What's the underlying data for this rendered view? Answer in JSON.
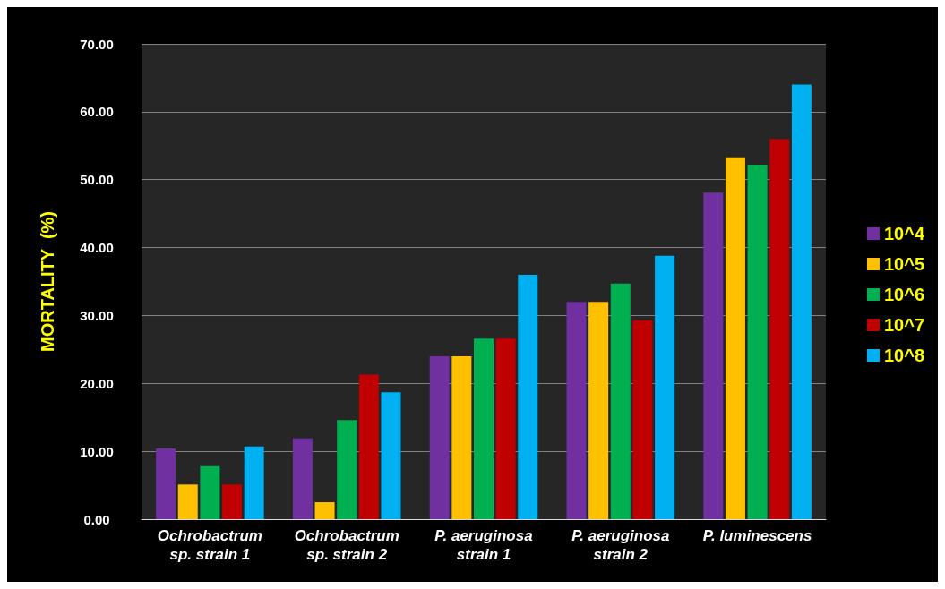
{
  "chart_data": {
    "type": "bar",
    "ylabel": "MORTALITY  (%)",
    "categories": [
      "Ochrobactrum\nsp. strain 1",
      "Ochrobactrum\nsp. strain 2",
      "P. aeruginosa\nstrain 1",
      "P. aeruginosa\nstrain 2",
      "P. luminescens"
    ],
    "series": [
      {
        "name": "10^4",
        "color": "#7030a0",
        "values": [
          10.4,
          11.9,
          24.0,
          32.0,
          48.1
        ]
      },
      {
        "name": "10^5",
        "color": "#ffc000",
        "values": [
          5.1,
          2.5,
          24.0,
          32.0,
          53.3
        ]
      },
      {
        "name": "10^6",
        "color": "#00b050",
        "values": [
          7.8,
          14.6,
          26.6,
          34.7,
          52.2
        ]
      },
      {
        "name": "10^7",
        "color": "#c00000",
        "values": [
          5.1,
          21.3,
          26.6,
          29.3,
          56.0
        ]
      },
      {
        "name": "10^8",
        "color": "#00b0f0",
        "values": [
          10.7,
          18.7,
          36.0,
          38.8,
          64.0
        ]
      }
    ],
    "ylim": [
      0,
      70
    ],
    "yticks": [
      {
        "value": 0,
        "label": "0.00"
      },
      {
        "value": 10,
        "label": "10.00"
      },
      {
        "value": 20,
        "label": "20.00"
      },
      {
        "value": 30,
        "label": "30.00"
      },
      {
        "value": 40,
        "label": "40.00"
      },
      {
        "value": 50,
        "label": "50.00"
      },
      {
        "value": 60,
        "label": "60.00"
      },
      {
        "value": 70,
        "label": "70.00"
      }
    ],
    "grid": "y",
    "legend": "right"
  }
}
